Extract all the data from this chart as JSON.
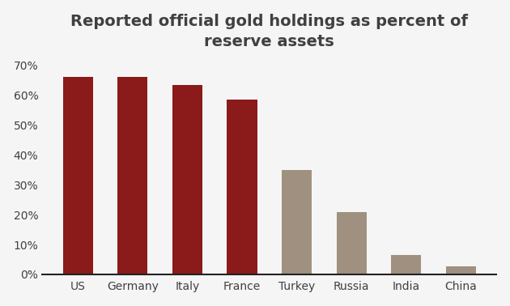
{
  "categories": [
    "US",
    "Germany",
    "Italy",
    "France",
    "Turkey",
    "Russia",
    "India",
    "China"
  ],
  "values": [
    0.66,
    0.66,
    0.635,
    0.585,
    0.35,
    0.21,
    0.065,
    0.028
  ],
  "bar_colors": [
    "#8B1A1A",
    "#8B1A1A",
    "#8B1A1A",
    "#8B1A1A",
    "#A09080",
    "#A09080",
    "#A09080",
    "#A09080"
  ],
  "title_line1": "Reported official gold holdings as percent of",
  "title_line2": "reserve assets",
  "ylim": [
    0,
    0.72
  ],
  "yticks": [
    0.0,
    0.1,
    0.2,
    0.3,
    0.4,
    0.5,
    0.6,
    0.7
  ],
  "title_fontsize": 14,
  "tick_fontsize": 10,
  "background_color": "#f5f5f5"
}
